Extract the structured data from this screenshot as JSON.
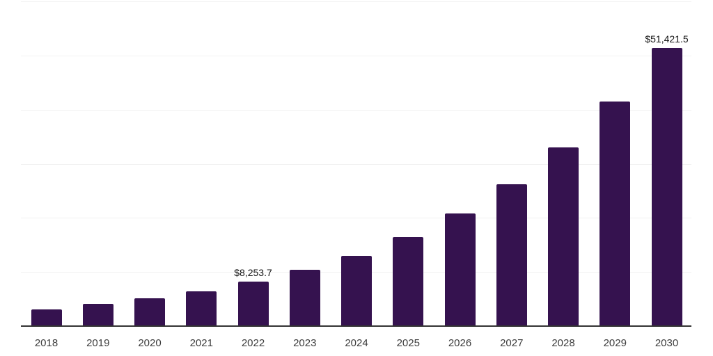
{
  "chart_data": {
    "type": "bar",
    "title": "",
    "xlabel": "",
    "ylabel": "",
    "categories": [
      "2018",
      "2019",
      "2020",
      "2021",
      "2022",
      "2023",
      "2024",
      "2025",
      "2026",
      "2027",
      "2028",
      "2029",
      "2030"
    ],
    "values": [
      3100,
      4100,
      5150,
      6420,
      8253.7,
      10400,
      13000,
      16400,
      20800,
      26200,
      33000,
      41500,
      51421.5
    ],
    "data_labels": [
      "",
      "",
      "",
      "",
      "$8,253.7",
      "",
      "",
      "",
      "",
      "",
      "",
      "",
      "$51,421.5"
    ],
    "ylim": [
      0,
      60000
    ],
    "grid_step": 10000,
    "grid": "horizontal",
    "legend": "none",
    "y_axis_tick_labels": "none",
    "colors": {
      "bar": "#35124F",
      "gridline": "#F1F1F1",
      "axis_line": "#333333",
      "value_label_text": "#141414",
      "x_tick_text": "#3C3C3C",
      "background": "#FFFFFF"
    }
  }
}
